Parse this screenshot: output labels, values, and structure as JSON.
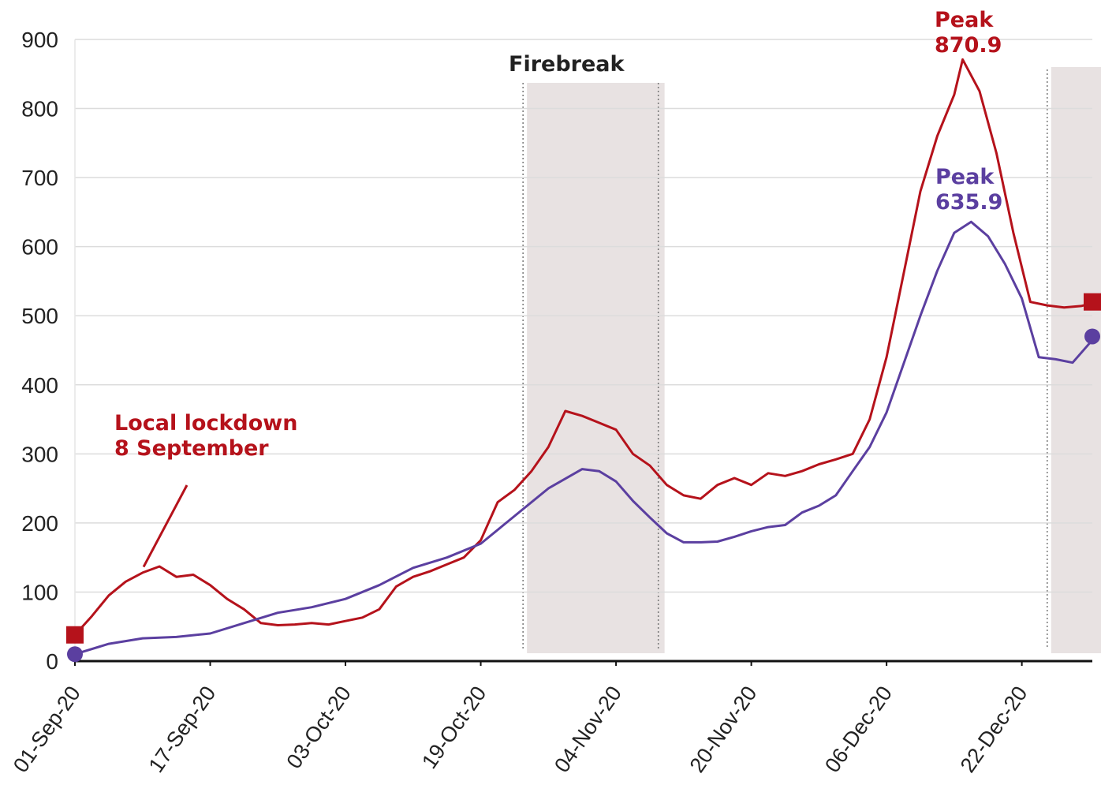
{
  "chart_data": {
    "type": "line",
    "title": "",
    "xlabel": "",
    "ylabel": "",
    "ylim": [
      0,
      900
    ],
    "yticks": [
      0,
      100,
      200,
      300,
      400,
      500,
      600,
      700,
      800,
      900
    ],
    "grid": true,
    "x_tick_labels": [
      "01-Sep-20",
      "17-Sep-20",
      "03-Oct-20",
      "19-Oct-20",
      "04-Nov-20",
      "20-Nov-20",
      "06-Dec-20",
      "22-Dec-20"
    ],
    "colors": {
      "red_series": "#b5121b",
      "purple_series": "#5b3fa0",
      "shade": "#e8e2e2"
    },
    "shaded_periods": [
      {
        "label": "Firebreak",
        "start": "24-Oct-20",
        "end": "09-Nov-20"
      },
      {
        "label": "",
        "start": "25-Dec-20",
        "end": "31-Dec-20"
      }
    ],
    "series": [
      {
        "color": "#b5121b",
        "points": [
          [
            "01-Sep-20",
            38
          ],
          [
            "03-Sep-20",
            65
          ],
          [
            "05-Sep-20",
            95
          ],
          [
            "07-Sep-20",
            115
          ],
          [
            "09-Sep-20",
            128
          ],
          [
            "11-Sep-20",
            137
          ],
          [
            "13-Sep-20",
            122
          ],
          [
            "15-Sep-20",
            125
          ],
          [
            "17-Sep-20",
            110
          ],
          [
            "19-Sep-20",
            90
          ],
          [
            "21-Sep-20",
            75
          ],
          [
            "23-Sep-20",
            55
          ],
          [
            "25-Sep-20",
            52
          ],
          [
            "27-Sep-20",
            53
          ],
          [
            "29-Sep-20",
            55
          ],
          [
            "01-Oct-20",
            53
          ],
          [
            "03-Oct-20",
            58
          ],
          [
            "05-Oct-20",
            63
          ],
          [
            "07-Oct-20",
            75
          ],
          [
            "09-Oct-20",
            108
          ],
          [
            "11-Oct-20",
            122
          ],
          [
            "13-Oct-20",
            130
          ],
          [
            "15-Oct-20",
            140
          ],
          [
            "17-Oct-20",
            150
          ],
          [
            "19-Oct-20",
            175
          ],
          [
            "21-Oct-20",
            230
          ],
          [
            "23-Oct-20",
            248
          ],
          [
            "25-Oct-20",
            275
          ],
          [
            "27-Oct-20",
            310
          ],
          [
            "29-Oct-20",
            362
          ],
          [
            "31-Oct-20",
            355
          ],
          [
            "02-Nov-20",
            345
          ],
          [
            "04-Nov-20",
            335
          ],
          [
            "06-Nov-20",
            300
          ],
          [
            "08-Nov-20",
            283
          ],
          [
            "10-Nov-20",
            255
          ],
          [
            "12-Nov-20",
            240
          ],
          [
            "14-Nov-20",
            235
          ],
          [
            "16-Nov-20",
            255
          ],
          [
            "18-Nov-20",
            265
          ],
          [
            "20-Nov-20",
            255
          ],
          [
            "22-Nov-20",
            272
          ],
          [
            "24-Nov-20",
            268
          ],
          [
            "26-Nov-20",
            275
          ],
          [
            "28-Nov-20",
            285
          ],
          [
            "30-Nov-20",
            292
          ],
          [
            "02-Dec-20",
            300
          ],
          [
            "04-Dec-20",
            350
          ],
          [
            "06-Dec-20",
            440
          ],
          [
            "08-Dec-20",
            560
          ],
          [
            "10-Dec-20",
            680
          ],
          [
            "12-Dec-20",
            760
          ],
          [
            "14-Dec-20",
            820
          ],
          [
            "15-Dec-20",
            870.9
          ],
          [
            "17-Dec-20",
            825
          ],
          [
            "19-Dec-20",
            735
          ],
          [
            "21-Dec-20",
            620
          ],
          [
            "23-Dec-20",
            520
          ],
          [
            "25-Dec-20",
            515
          ],
          [
            "27-Dec-20",
            512
          ],
          [
            "29-Dec-20",
            514
          ],
          [
            "31-Dec-20",
            520
          ]
        ]
      },
      {
        "color": "#5b3fa0",
        "points": [
          [
            "01-Sep-20",
            10
          ],
          [
            "05-Sep-20",
            25
          ],
          [
            "09-Sep-20",
            33
          ],
          [
            "13-Sep-20",
            35
          ],
          [
            "17-Sep-20",
            40
          ],
          [
            "21-Sep-20",
            55
          ],
          [
            "25-Sep-20",
            70
          ],
          [
            "29-Sep-20",
            78
          ],
          [
            "03-Oct-20",
            90
          ],
          [
            "07-Oct-20",
            110
          ],
          [
            "11-Oct-20",
            135
          ],
          [
            "15-Oct-20",
            150
          ],
          [
            "19-Oct-20",
            170
          ],
          [
            "23-Oct-20",
            210
          ],
          [
            "27-Oct-20",
            250
          ],
          [
            "31-Oct-20",
            278
          ],
          [
            "02-Nov-20",
            275
          ],
          [
            "04-Nov-20",
            260
          ],
          [
            "06-Nov-20",
            232
          ],
          [
            "08-Nov-20",
            208
          ],
          [
            "10-Nov-20",
            185
          ],
          [
            "12-Nov-20",
            172
          ],
          [
            "14-Nov-20",
            172
          ],
          [
            "16-Nov-20",
            173
          ],
          [
            "18-Nov-20",
            180
          ],
          [
            "20-Nov-20",
            188
          ],
          [
            "22-Nov-20",
            194
          ],
          [
            "24-Nov-20",
            197
          ],
          [
            "26-Nov-20",
            215
          ],
          [
            "28-Nov-20",
            225
          ],
          [
            "30-Nov-20",
            240
          ],
          [
            "02-Dec-20",
            275
          ],
          [
            "04-Dec-20",
            310
          ],
          [
            "06-Dec-20",
            360
          ],
          [
            "08-Dec-20",
            430
          ],
          [
            "10-Dec-20",
            500
          ],
          [
            "12-Dec-20",
            565
          ],
          [
            "14-Dec-20",
            620
          ],
          [
            "16-Dec-20",
            635.9
          ],
          [
            "18-Dec-20",
            615
          ],
          [
            "20-Dec-20",
            575
          ],
          [
            "22-Dec-20",
            525
          ],
          [
            "24-Dec-20",
            440
          ],
          [
            "26-Dec-20",
            437
          ],
          [
            "28-Dec-20",
            432
          ],
          [
            "30-Dec-20",
            460
          ],
          [
            "31-Dec-20",
            470
          ]
        ]
      }
    ],
    "annotations": [
      {
        "lines": [
          "Peak",
          "870.9"
        ],
        "color": "#b5121b"
      },
      {
        "lines": [
          "Peak",
          "635.9"
        ],
        "color": "#5b3fa0"
      },
      {
        "lines": [
          "Local lockdown",
          "8 September"
        ],
        "color": "#b5121b",
        "points_to": [
          "08-Sep-20",
          125
        ]
      },
      {
        "lines": [
          "Firebreak"
        ],
        "color": "#222222"
      }
    ]
  }
}
